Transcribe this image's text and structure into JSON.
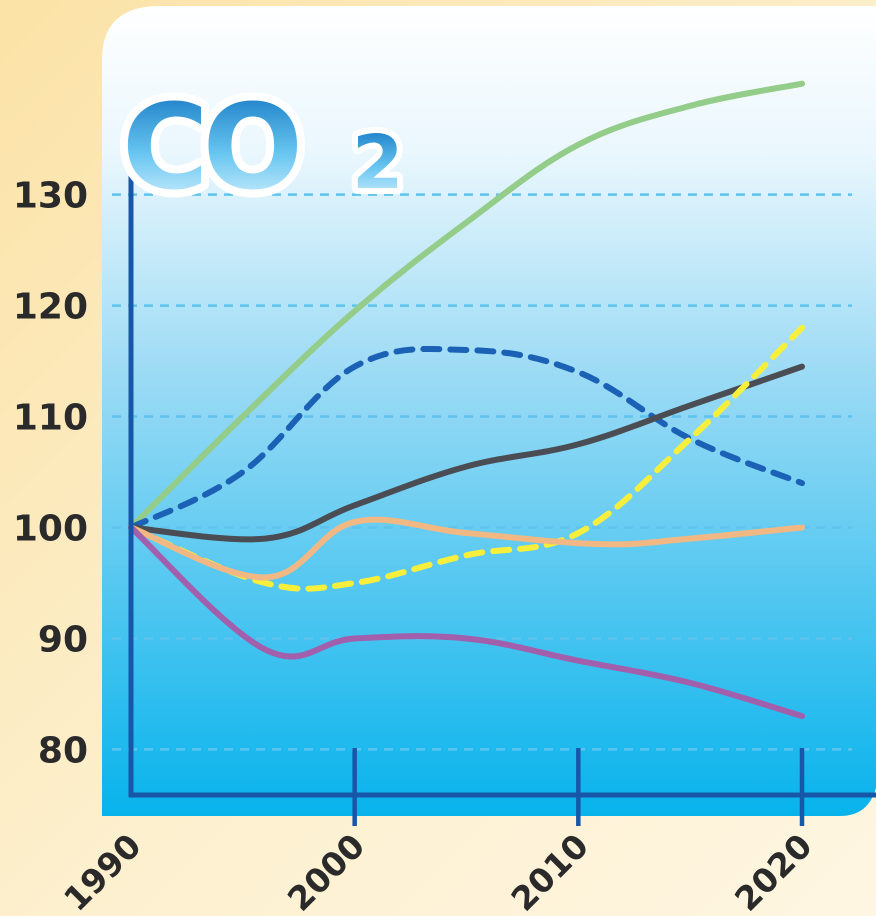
{
  "logo": {
    "main": "CO",
    "sub": "2"
  },
  "colors": {
    "green": "#94cc8a",
    "navy_dashed": "#1b61b5",
    "dark_gray": "#4a4d53",
    "yellow_dashed": "#f7ef3c",
    "peach": "#f1b883",
    "purple": "#a25fab",
    "axis": "#1756a8",
    "grid": "#5ec4ee"
  },
  "chart_data": {
    "type": "line",
    "xlim": [
      1990,
      2020
    ],
    "ylim": [
      74,
      147
    ],
    "y_ticks": [
      80,
      90,
      100,
      110,
      120,
      130
    ],
    "x_ticks": [
      1990,
      2000,
      2010,
      2020
    ],
    "y_tick_labels": [
      "80",
      "90",
      "100",
      "110",
      "120",
      "130"
    ],
    "x_tick_labels": [
      "1990",
      "2000",
      "2010",
      "2020"
    ],
    "grid": "horizontal dashed",
    "series": [
      {
        "color_key": "green",
        "style": "solid",
        "points": [
          [
            1990,
            100
          ],
          [
            1995,
            110
          ],
          [
            2000,
            119.5
          ],
          [
            2005,
            127.5
          ],
          [
            2010,
            134.5
          ],
          [
            2015,
            138
          ],
          [
            2020,
            140
          ]
        ]
      },
      {
        "color_key": "navy_dashed",
        "style": "dashed",
        "points": [
          [
            1990,
            100
          ],
          [
            1995,
            105
          ],
          [
            2000,
            114.5
          ],
          [
            2005,
            116
          ],
          [
            2010,
            114
          ],
          [
            2015,
            108
          ],
          [
            2020,
            104
          ]
        ]
      },
      {
        "color_key": "dark_gray",
        "style": "solid",
        "points": [
          [
            1990,
            100
          ],
          [
            1996,
            99
          ],
          [
            2000,
            102
          ],
          [
            2005,
            105.5
          ],
          [
            2010,
            107.5
          ],
          [
            2015,
            111
          ],
          [
            2020,
            114.5
          ]
        ]
      },
      {
        "color_key": "yellow_dashed",
        "style": "dashed",
        "points": [
          [
            1990,
            100
          ],
          [
            1996,
            95
          ],
          [
            2000,
            95
          ],
          [
            2005,
            97.5
          ],
          [
            2010,
            99.5
          ],
          [
            2015,
            108
          ],
          [
            2020,
            118
          ]
        ]
      },
      {
        "color_key": "peach",
        "style": "solid",
        "points": [
          [
            1990,
            100
          ],
          [
            1996,
            95.5
          ],
          [
            2000,
            100.5
          ],
          [
            2005,
            99.5
          ],
          [
            2011,
            98.5
          ],
          [
            2015,
            99
          ],
          [
            2020,
            100
          ]
        ]
      },
      {
        "color_key": "purple",
        "style": "solid",
        "points": [
          [
            1990,
            100
          ],
          [
            1996,
            89
          ],
          [
            2000,
            90
          ],
          [
            2005,
            90
          ],
          [
            2010,
            88
          ],
          [
            2015,
            86
          ],
          [
            2020,
            83
          ]
        ]
      }
    ]
  }
}
